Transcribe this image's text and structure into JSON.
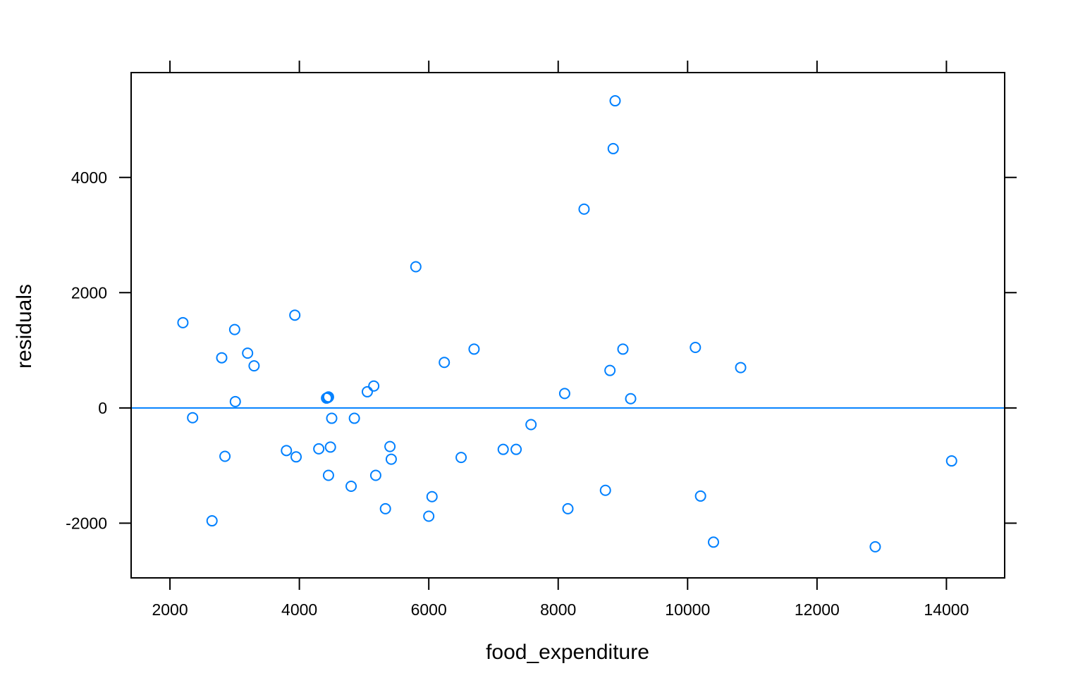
{
  "chart_data": {
    "type": "scatter",
    "title": "",
    "xlabel": "food_expenditure",
    "ylabel": "residuals",
    "xlim": [
      1400,
      14900
    ],
    "ylim": [
      -2950,
      5820
    ],
    "x_ticks": [
      2000,
      4000,
      6000,
      8000,
      10000,
      12000,
      14000
    ],
    "y_ticks": [
      -2000,
      0,
      2000,
      4000
    ],
    "x_tick_labels": [
      "2000",
      "4000",
      "6000",
      "8000",
      "10000",
      "12000",
      "14000"
    ],
    "y_tick_labels": [
      "-2000",
      "0",
      "2000",
      "4000"
    ],
    "reference_line": {
      "y": 0,
      "color": "#0080ff"
    },
    "grid": false,
    "point_color": "#0080ff",
    "points": [
      {
        "x": 2200,
        "y": 1480
      },
      {
        "x": 2350,
        "y": -170
      },
      {
        "x": 2650,
        "y": -1960
      },
      {
        "x": 2800,
        "y": 870
      },
      {
        "x": 2850,
        "y": -840
      },
      {
        "x": 3000,
        "y": 1360
      },
      {
        "x": 3010,
        "y": 110
      },
      {
        "x": 3200,
        "y": 950
      },
      {
        "x": 3300,
        "y": 730
      },
      {
        "x": 3800,
        "y": -740
      },
      {
        "x": 3930,
        "y": 1610
      },
      {
        "x": 3950,
        "y": -850
      },
      {
        "x": 4300,
        "y": -710
      },
      {
        "x": 4420,
        "y": 170
      },
      {
        "x": 4440,
        "y": 180
      },
      {
        "x": 4450,
        "y": 190
      },
      {
        "x": 4450,
        "y": -1170
      },
      {
        "x": 4480,
        "y": -680
      },
      {
        "x": 4500,
        "y": -180
      },
      {
        "x": 4800,
        "y": -1360
      },
      {
        "x": 4850,
        "y": -180
      },
      {
        "x": 5050,
        "y": 280
      },
      {
        "x": 5150,
        "y": 380
      },
      {
        "x": 5180,
        "y": -1170
      },
      {
        "x": 5330,
        "y": -1750
      },
      {
        "x": 5400,
        "y": -670
      },
      {
        "x": 5420,
        "y": -890
      },
      {
        "x": 5800,
        "y": 2450
      },
      {
        "x": 6000,
        "y": -1880
      },
      {
        "x": 6050,
        "y": -1540
      },
      {
        "x": 6240,
        "y": 790
      },
      {
        "x": 6500,
        "y": -860
      },
      {
        "x": 6700,
        "y": 1020
      },
      {
        "x": 7150,
        "y": -720
      },
      {
        "x": 7350,
        "y": -720
      },
      {
        "x": 7580,
        "y": -290
      },
      {
        "x": 8100,
        "y": 250
      },
      {
        "x": 8150,
        "y": -1750
      },
      {
        "x": 8400,
        "y": 3450
      },
      {
        "x": 8730,
        "y": -1430
      },
      {
        "x": 8800,
        "y": 650
      },
      {
        "x": 8850,
        "y": 4500
      },
      {
        "x": 8880,
        "y": 5330
      },
      {
        "x": 9000,
        "y": 1020
      },
      {
        "x": 9120,
        "y": 160
      },
      {
        "x": 10120,
        "y": 1050
      },
      {
        "x": 10200,
        "y": -1530
      },
      {
        "x": 10400,
        "y": -2330
      },
      {
        "x": 10820,
        "y": 700
      },
      {
        "x": 12900,
        "y": -2410
      },
      {
        "x": 14080,
        "y": -920
      }
    ]
  }
}
